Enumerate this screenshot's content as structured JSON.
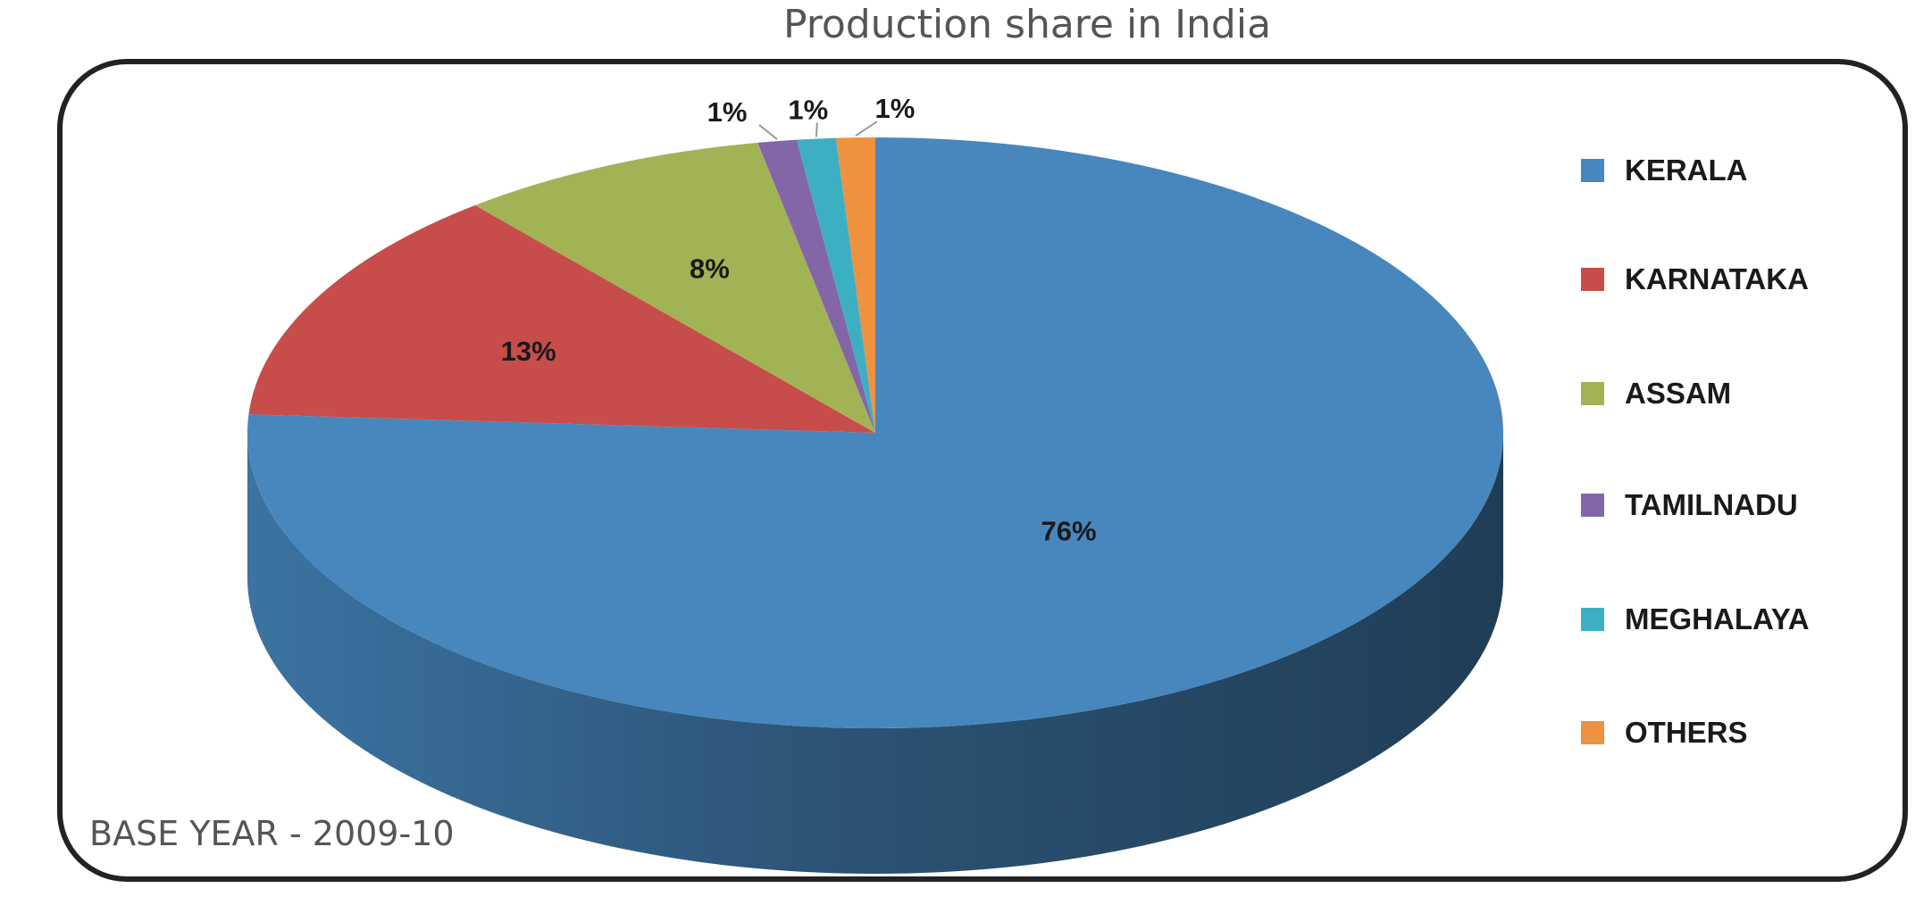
{
  "chart_data": {
    "type": "pie",
    "title": "Production share in India",
    "categories": [
      "KERALA",
      "KARNATAKA",
      "ASSAM",
      "TAMILNADU",
      "MEGHALAYA",
      "OTHERS"
    ],
    "values": [
      76,
      13,
      8,
      1,
      1,
      1
    ],
    "value_labels": [
      "76%",
      "13%",
      "8%",
      "1%",
      "1%",
      "1%"
    ],
    "colors": [
      "#4787BE",
      "#C74D4A",
      "#A2B355",
      "#8366A8",
      "#3DAFC3",
      "#EE9240"
    ],
    "legend_position": "right",
    "style": "3d",
    "footnote": "BASE YEAR - 2009-10"
  }
}
